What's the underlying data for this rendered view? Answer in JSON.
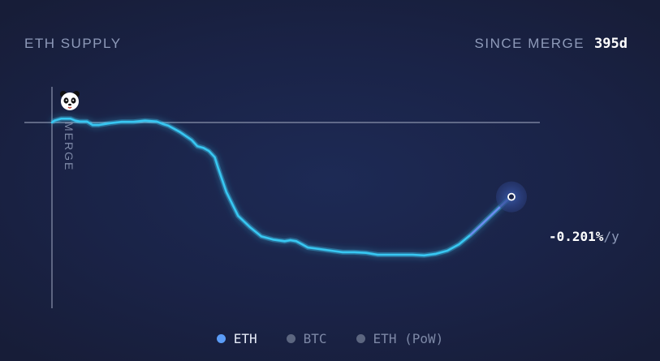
{
  "header": {
    "title": "ETH SUPPLY",
    "since_label": "SINCE MERGE",
    "since_value": "395d"
  },
  "merge_label": "MERGE",
  "end_value": {
    "number": "-0.201%",
    "unit": "/y"
  },
  "legend": [
    {
      "label": "ETH",
      "color": "#5b9cf6",
      "active": true
    },
    {
      "label": "BTC",
      "color": "#5c6680",
      "active": false
    },
    {
      "label": "ETH (PoW)",
      "color": "#5c6680",
      "active": false
    }
  ],
  "icons": {
    "merge_marker": "panda-icon",
    "end_marker": "end-point-icon"
  },
  "colors": {
    "line": "#38c7f2",
    "line_end": "#6a8cf0",
    "baseline": "#8b93ad"
  },
  "chart_data": {
    "type": "line",
    "title": "ETH SUPPLY",
    "series": [
      {
        "name": "ETH",
        "x": [
          0,
          2,
          8,
          16,
          20,
          24,
          30,
          35,
          40,
          50,
          60,
          70,
          80,
          90,
          95,
          100,
          110,
          120,
          125,
          130,
          135,
          140,
          143,
          150,
          160,
          170,
          180,
          190,
          200,
          205,
          210,
          215,
          220,
          230,
          240,
          250,
          260,
          270,
          280,
          290,
          300,
          310,
          320,
          330,
          340,
          350,
          360,
          370,
          380,
          390,
          395
        ],
        "values": [
          0,
          0.006,
          0.012,
          0.012,
          0.006,
          0.003,
          0.003,
          -0.008,
          -0.008,
          -0.002,
          0.002,
          0.002,
          0.006,
          0.003,
          -0.004,
          -0.01,
          -0.03,
          -0.055,
          -0.075,
          -0.08,
          -0.09,
          -0.11,
          -0.145,
          -0.22,
          -0.295,
          -0.33,
          -0.36,
          -0.37,
          -0.375,
          -0.372,
          -0.375,
          -0.385,
          -0.395,
          -0.4,
          -0.405,
          -0.41,
          -0.41,
          -0.412,
          -0.418,
          -0.418,
          -0.418,
          -0.418,
          -0.42,
          -0.415,
          -0.405,
          -0.385,
          -0.355,
          -0.32,
          -0.285,
          -0.25,
          -0.235
        ]
      }
    ],
    "xlim": [
      0,
      395
    ],
    "ylim": [
      -0.5,
      0.05
    ],
    "grid": false,
    "legend_position": "bottom-center"
  }
}
